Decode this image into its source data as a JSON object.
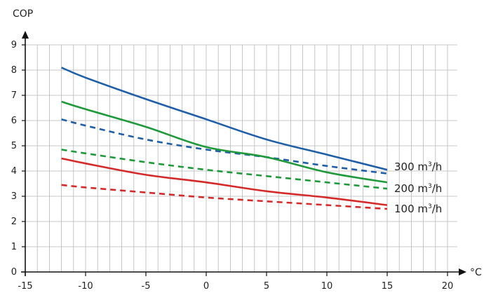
{
  "chart_data": {
    "type": "line",
    "title": "",
    "xlabel": "°C",
    "ylabel": "COP",
    "xlim": [
      -15,
      20
    ],
    "ylim": [
      0,
      9
    ],
    "x_ticks": [
      -15,
      -10,
      -5,
      0,
      5,
      10,
      15,
      20
    ],
    "y_ticks": [
      0,
      1,
      2,
      3,
      4,
      5,
      6,
      7,
      8,
      9
    ],
    "grid": true,
    "colors": {
      "blue": "#1f5fa8",
      "green": "#1f9a3a",
      "red": "#d42a2a",
      "grid": "#b8b8b8"
    },
    "series": [
      {
        "label_value": "300",
        "label_unit": "m",
        "label_exp": "3",
        "label_tail": "/h",
        "color": "#1f5fa8",
        "dashed": false,
        "x": [
          -12,
          -10,
          -5,
          0,
          5,
          10,
          15
        ],
        "y": [
          8.1,
          7.7,
          6.85,
          6.05,
          5.25,
          4.65,
          4.05
        ]
      },
      {
        "color": "#1f5fa8",
        "dashed": true,
        "x": [
          -12,
          -10,
          -5,
          0,
          5,
          10,
          15
        ],
        "y": [
          6.05,
          5.8,
          5.25,
          4.85,
          4.55,
          4.2,
          3.9
        ]
      },
      {
        "label_value": "200",
        "label_unit": "m",
        "label_exp": "3",
        "label_tail": "/h",
        "color": "#1f9a3a",
        "dashed": false,
        "x": [
          -12,
          -10,
          -5,
          0,
          5,
          10,
          15
        ],
        "y": [
          6.75,
          6.45,
          5.75,
          4.95,
          4.55,
          3.95,
          3.55
        ]
      },
      {
        "color": "#1f9a3a",
        "dashed": true,
        "x": [
          -12,
          -10,
          -5,
          0,
          5,
          10,
          15
        ],
        "y": [
          4.85,
          4.7,
          4.35,
          4.05,
          3.8,
          3.55,
          3.3
        ]
      },
      {
        "label_value": "100",
        "label_unit": "m",
        "label_exp": "3",
        "label_tail": "/h",
        "color": "#d42a2a",
        "dashed": false,
        "x": [
          -12,
          -10,
          -5,
          0,
          5,
          10,
          15
        ],
        "y": [
          4.5,
          4.3,
          3.85,
          3.55,
          3.2,
          2.95,
          2.65
        ]
      },
      {
        "color": "#d42a2a",
        "dashed": true,
        "x": [
          -12,
          -10,
          -5,
          0,
          5,
          10,
          15
        ],
        "y": [
          3.45,
          3.35,
          3.15,
          2.95,
          2.8,
          2.65,
          2.5
        ]
      }
    ]
  }
}
